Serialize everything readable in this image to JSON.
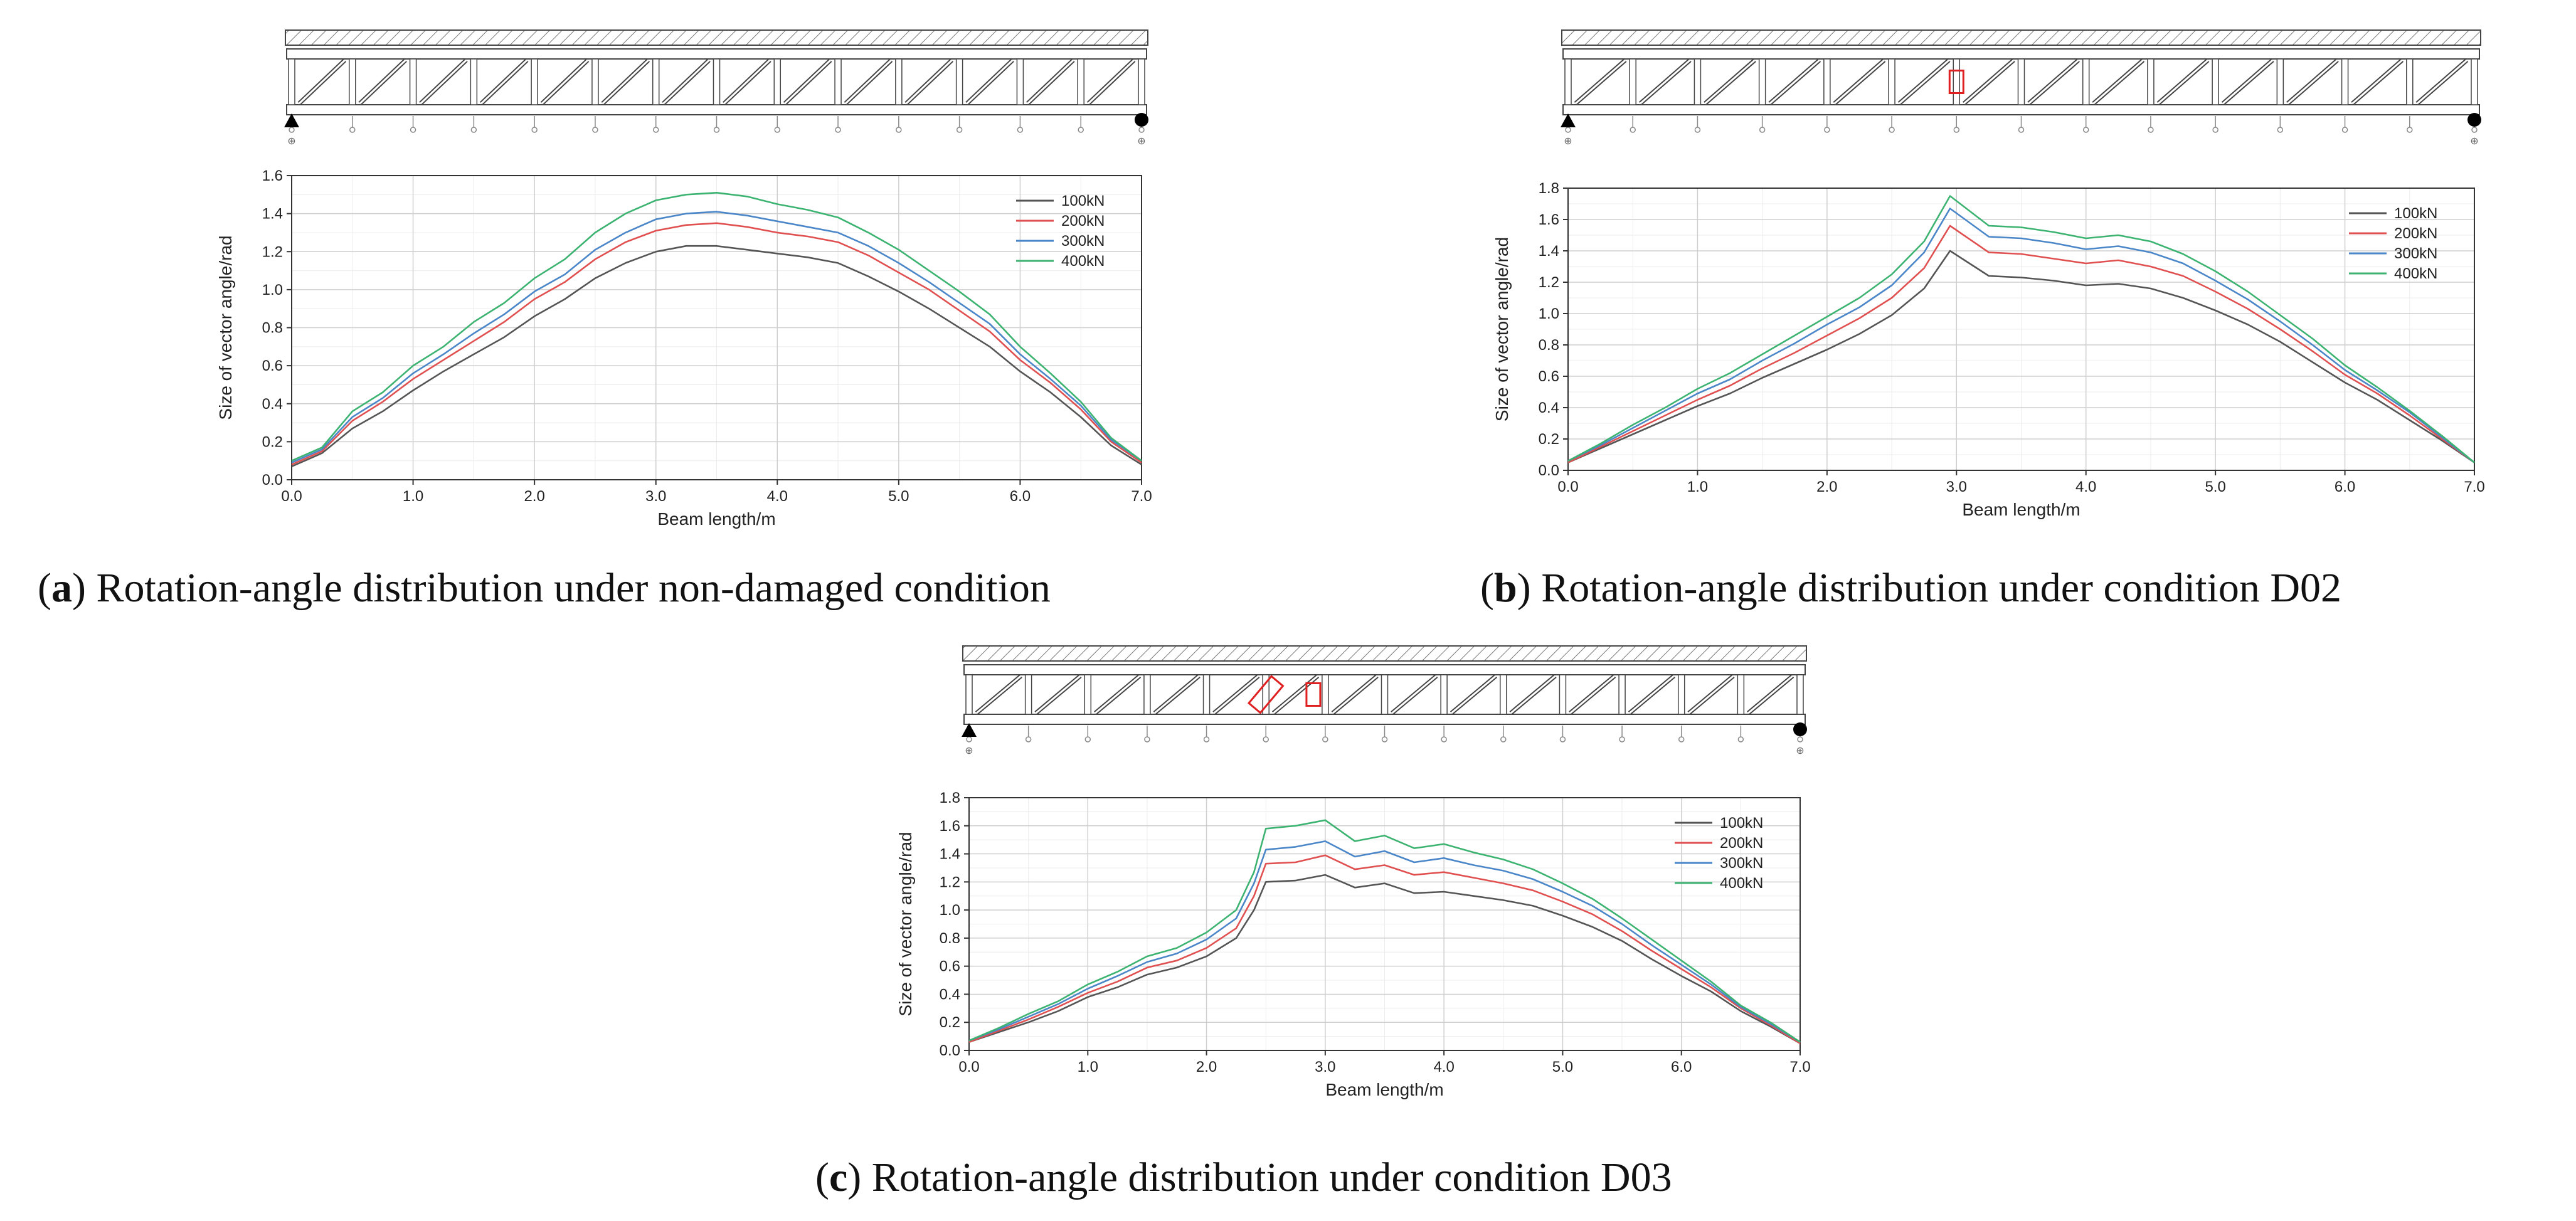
{
  "panels": [
    {
      "caption": {
        "letter": "a",
        "text": " Rotation-angle distribution under non-damaged condition"
      },
      "supports": {
        "left_label": "⊕",
        "right_label": "⊕"
      },
      "damage_markers": [],
      "chart_data": {
        "type": "line",
        "title": "",
        "xlabel": "Beam length/m",
        "ylabel": "Size of vector angle/rad",
        "xlim": [
          0,
          7
        ],
        "ylim": [
          0,
          1.6
        ],
        "xticks": [
          "0.0",
          "1.0",
          "2.0",
          "3.0",
          "4.0",
          "5.0",
          "6.0",
          "7.0"
        ],
        "yticks": [
          "0.0",
          "0.2",
          "0.4",
          "0.6",
          "0.8",
          "1.0",
          "1.2",
          "1.4",
          "1.6"
        ],
        "grid": true,
        "legend_position": "top-right",
        "x": [
          0,
          0.25,
          0.5,
          0.75,
          1.0,
          1.25,
          1.5,
          1.75,
          2.0,
          2.25,
          2.5,
          2.75,
          3.0,
          3.25,
          3.5,
          3.75,
          4.0,
          4.25,
          4.5,
          4.75,
          5.0,
          5.25,
          5.5,
          5.75,
          6.0,
          6.25,
          6.5,
          6.75,
          7.0
        ],
        "series": [
          {
            "name": "100kN",
            "color": "#555555",
            "values": [
              0.07,
              0.14,
              0.27,
              0.36,
              0.47,
              0.57,
              0.66,
              0.75,
              0.86,
              0.95,
              1.06,
              1.14,
              1.2,
              1.23,
              1.23,
              1.21,
              1.19,
              1.17,
              1.14,
              1.07,
              0.99,
              0.9,
              0.8,
              0.7,
              0.57,
              0.46,
              0.33,
              0.18,
              0.08
            ]
          },
          {
            "name": "200kN",
            "color": "#e05050",
            "values": [
              0.08,
              0.15,
              0.31,
              0.41,
              0.53,
              0.63,
              0.73,
              0.83,
              0.95,
              1.04,
              1.16,
              1.25,
              1.31,
              1.34,
              1.35,
              1.33,
              1.3,
              1.28,
              1.25,
              1.18,
              1.09,
              1.0,
              0.89,
              0.78,
              0.63,
              0.51,
              0.37,
              0.2,
              0.09
            ]
          },
          {
            "name": "300kN",
            "color": "#4a86c8",
            "values": [
              0.09,
              0.16,
              0.33,
              0.43,
              0.56,
              0.66,
              0.77,
              0.87,
              0.99,
              1.08,
              1.21,
              1.3,
              1.37,
              1.4,
              1.41,
              1.39,
              1.36,
              1.33,
              1.3,
              1.23,
              1.14,
              1.04,
              0.93,
              0.82,
              0.66,
              0.53,
              0.39,
              0.21,
              0.1
            ]
          },
          {
            "name": "400kN",
            "color": "#3cb371",
            "values": [
              0.1,
              0.17,
              0.36,
              0.46,
              0.6,
              0.7,
              0.83,
              0.93,
              1.06,
              1.16,
              1.3,
              1.4,
              1.47,
              1.5,
              1.51,
              1.49,
              1.45,
              1.42,
              1.38,
              1.3,
              1.21,
              1.1,
              0.99,
              0.87,
              0.7,
              0.56,
              0.41,
              0.22,
              0.1
            ]
          }
        ]
      }
    },
    {
      "caption": {
        "letter": "b",
        "text": " Rotation-angle distribution under condition D02"
      },
      "supports": {
        "left_label": "⊕",
        "right_label": "⊕"
      },
      "damage_markers": [
        {
          "type": "rect",
          "at_m": 3.0
        }
      ],
      "chart_data": {
        "type": "line",
        "title": "",
        "xlabel": "Beam length/m",
        "ylabel": "Size of vector angle/rad",
        "xlim": [
          0,
          7
        ],
        "ylim": [
          0,
          1.8
        ],
        "xticks": [
          "0.0",
          "1.0",
          "2.0",
          "3.0",
          "4.0",
          "5.0",
          "6.0",
          "7.0"
        ],
        "yticks": [
          "0.0",
          "0.2",
          "0.4",
          "0.6",
          "0.8",
          "1.0",
          "1.2",
          "1.4",
          "1.6",
          "1.8"
        ],
        "grid": true,
        "legend_position": "top-right",
        "x": [
          0,
          0.25,
          0.5,
          0.75,
          1.0,
          1.25,
          1.5,
          1.75,
          2.0,
          2.25,
          2.5,
          2.75,
          2.95,
          3.25,
          3.5,
          3.75,
          4.0,
          4.25,
          4.5,
          4.75,
          5.0,
          5.25,
          5.5,
          5.75,
          6.0,
          6.25,
          6.5,
          6.75,
          7.0
        ],
        "series": [
          {
            "name": "100kN",
            "color": "#555555",
            "values": [
              0.05,
              0.14,
              0.23,
              0.32,
              0.41,
              0.49,
              0.59,
              0.68,
              0.77,
              0.87,
              0.99,
              1.16,
              1.4,
              1.24,
              1.23,
              1.21,
              1.18,
              1.19,
              1.16,
              1.1,
              1.02,
              0.93,
              0.82,
              0.69,
              0.56,
              0.45,
              0.32,
              0.19,
              0.05
            ]
          },
          {
            "name": "200kN",
            "color": "#e05050",
            "values": [
              0.05,
              0.15,
              0.25,
              0.35,
              0.45,
              0.54,
              0.65,
              0.75,
              0.86,
              0.97,
              1.1,
              1.29,
              1.56,
              1.39,
              1.38,
              1.35,
              1.32,
              1.34,
              1.3,
              1.24,
              1.14,
              1.03,
              0.9,
              0.76,
              0.61,
              0.49,
              0.35,
              0.2,
              0.05
            ]
          },
          {
            "name": "300kN",
            "color": "#4a86c8",
            "values": [
              0.06,
              0.16,
              0.27,
              0.38,
              0.49,
              0.58,
              0.7,
              0.81,
              0.93,
              1.04,
              1.18,
              1.39,
              1.67,
              1.49,
              1.48,
              1.45,
              1.41,
              1.43,
              1.39,
              1.32,
              1.21,
              1.09,
              0.95,
              0.8,
              0.64,
              0.51,
              0.37,
              0.21,
              0.05
            ]
          },
          {
            "name": "400kN",
            "color": "#3cb371",
            "values": [
              0.06,
              0.17,
              0.29,
              0.4,
              0.52,
              0.62,
              0.74,
              0.86,
              0.98,
              1.1,
              1.25,
              1.46,
              1.75,
              1.56,
              1.55,
              1.52,
              1.48,
              1.5,
              1.46,
              1.38,
              1.27,
              1.14,
              0.99,
              0.84,
              0.67,
              0.53,
              0.38,
              0.22,
              0.05
            ]
          }
        ]
      }
    },
    {
      "caption": {
        "letter": "c",
        "text": " Rotation-angle distribution under condition D03"
      },
      "supports": {
        "left_label": "⊕",
        "right_label": "⊕"
      },
      "damage_markers": [
        {
          "type": "diamond",
          "at_m": 2.5
        },
        {
          "type": "rect",
          "at_m": 2.9
        }
      ],
      "chart_data": {
        "type": "line",
        "title": "",
        "xlabel": "Beam length/m",
        "ylabel": "Size of vector angle/rad",
        "xlim": [
          0,
          7
        ],
        "ylim": [
          0,
          1.8
        ],
        "xticks": [
          "0.0",
          "1.0",
          "2.0",
          "3.0",
          "4.0",
          "5.0",
          "6.0",
          "7.0"
        ],
        "yticks": [
          "0.0",
          "0.2",
          "0.4",
          "0.6",
          "0.8",
          "1.0",
          "1.2",
          "1.4",
          "1.6",
          "1.8"
        ],
        "grid": true,
        "legend_position": "top-right",
        "x": [
          0,
          0.25,
          0.5,
          0.75,
          1.0,
          1.25,
          1.5,
          1.75,
          2.0,
          2.25,
          2.4,
          2.5,
          2.75,
          3.0,
          3.25,
          3.5,
          3.75,
          4.0,
          4.25,
          4.5,
          4.75,
          5.0,
          5.25,
          5.5,
          5.75,
          6.0,
          6.25,
          6.5,
          6.75,
          7.0
        ],
        "series": [
          {
            "name": "100kN",
            "color": "#555555",
            "values": [
              0.06,
              0.13,
              0.2,
              0.28,
              0.38,
              0.45,
              0.54,
              0.59,
              0.67,
              0.8,
              1.0,
              1.2,
              1.21,
              1.25,
              1.16,
              1.19,
              1.12,
              1.13,
              1.1,
              1.07,
              1.03,
              0.96,
              0.88,
              0.78,
              0.65,
              0.53,
              0.42,
              0.28,
              0.17,
              0.05
            ]
          },
          {
            "name": "200kN",
            "color": "#e05050",
            "values": [
              0.06,
              0.14,
              0.22,
              0.31,
              0.41,
              0.49,
              0.59,
              0.64,
              0.73,
              0.87,
              1.1,
              1.33,
              1.34,
              1.39,
              1.29,
              1.32,
              1.25,
              1.27,
              1.23,
              1.19,
              1.14,
              1.06,
              0.97,
              0.85,
              0.71,
              0.58,
              0.45,
              0.3,
              0.18,
              0.05
            ]
          },
          {
            "name": "300kN",
            "color": "#4a86c8",
            "values": [
              0.07,
              0.15,
              0.24,
              0.33,
              0.44,
              0.53,
              0.63,
              0.69,
              0.79,
              0.94,
              1.19,
              1.43,
              1.45,
              1.49,
              1.38,
              1.42,
              1.34,
              1.37,
              1.32,
              1.28,
              1.22,
              1.13,
              1.03,
              0.9,
              0.75,
              0.61,
              0.47,
              0.31,
              0.19,
              0.06
            ]
          },
          {
            "name": "400kN",
            "color": "#3cb371",
            "values": [
              0.07,
              0.16,
              0.26,
              0.35,
              0.47,
              0.56,
              0.67,
              0.73,
              0.84,
              1.0,
              1.27,
              1.58,
              1.6,
              1.64,
              1.49,
              1.53,
              1.44,
              1.47,
              1.41,
              1.36,
              1.29,
              1.19,
              1.08,
              0.94,
              0.79,
              0.64,
              0.49,
              0.32,
              0.2,
              0.06
            ]
          }
        ]
      }
    }
  ]
}
